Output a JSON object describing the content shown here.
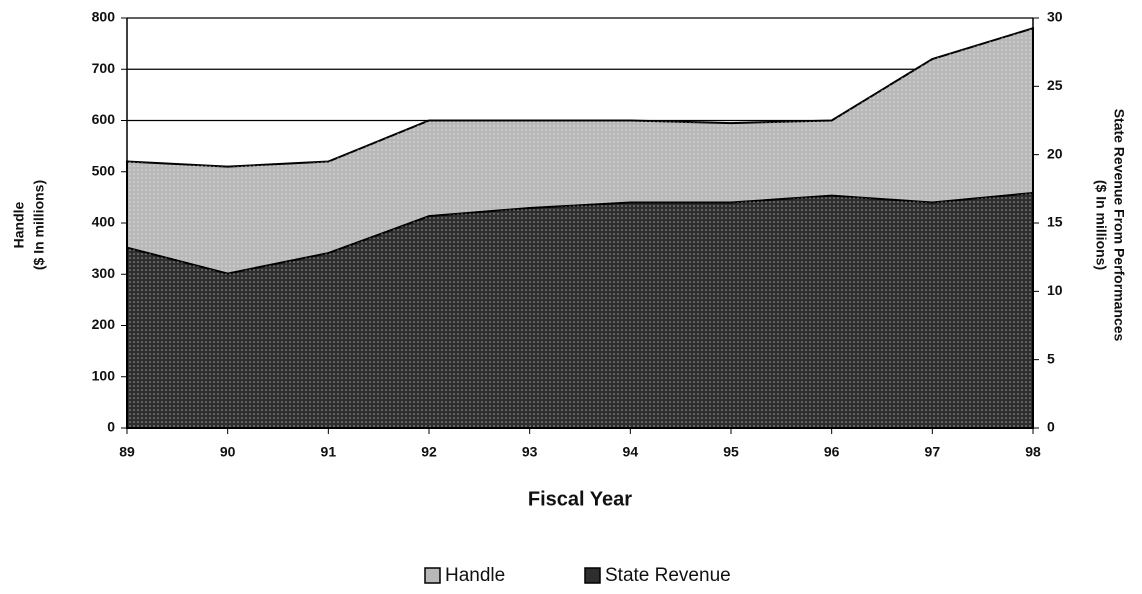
{
  "chart_data": {
    "type": "area",
    "xlabel": "Fiscal Year",
    "ylabel": [
      "Handle",
      "($ In millions)"
    ],
    "y2label": [
      "State Revenue From Performances",
      "($ In millions)"
    ],
    "categories": [
      "89",
      "90",
      "91",
      "92",
      "93",
      "94",
      "95",
      "96",
      "97",
      "98"
    ],
    "series": [
      {
        "name": "Handle",
        "color": "#b8b8b8",
        "values": [
          520,
          510,
          520,
          600,
          600,
          600,
          595,
          600,
          720,
          780
        ]
      },
      {
        "name": "State Revenue",
        "color": "#2e2e2e",
        "axis": "y2",
        "values": [
          13.2,
          11.3,
          12.8,
          15.5,
          16.1,
          16.5,
          16.5,
          17.0,
          16.5,
          17.2
        ]
      }
    ],
    "ylim": [
      0,
      800
    ],
    "yticks": [
      0,
      100,
      200,
      300,
      400,
      500,
      600,
      700,
      800
    ],
    "y2lim": [
      0,
      30
    ],
    "y2ticks": [
      0,
      5,
      10,
      15,
      20,
      25,
      30
    ],
    "grid": true,
    "legend": "bottom"
  }
}
